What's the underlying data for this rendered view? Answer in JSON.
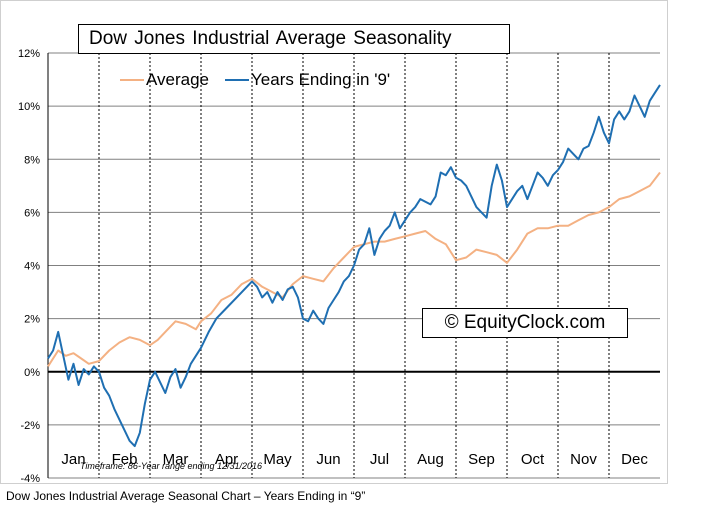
{
  "caption": "Dow Jones Industrial Average Seasonal Chart – Years Ending in “9”",
  "watermark": "© EquityClock.com",
  "timeframe_note": "Timeframe: 86-Year range ending 12/31/2016",
  "colors": {
    "average": "#f4b183",
    "years_ending_9": "#1f6fb2",
    "grid": "#808080",
    "zero_line": "#000000"
  },
  "chart_data": {
    "type": "line",
    "title": "Dow Jones Industrial Average Seasonality",
    "xlabel": "",
    "ylabel": "",
    "categories": [
      "Jan",
      "Feb",
      "Mar",
      "Apr",
      "May",
      "Jun",
      "Jul",
      "Aug",
      "Sep",
      "Oct",
      "Nov",
      "Dec"
    ],
    "ylim": [
      -4,
      12
    ],
    "yticks": [
      -4,
      -2,
      0,
      2,
      4,
      6,
      8,
      10,
      12
    ],
    "ytick_labels": [
      "-4%",
      "-2%",
      "0%",
      "2%",
      "4%",
      "6%",
      "8%",
      "10%",
      "12%"
    ],
    "x_unit": "month (0 = start of Jan, 12 = end of Dec)",
    "grid": true,
    "legend_position": "top-left",
    "series": [
      {
        "name": "Average",
        "color": "#f4b183",
        "x": [
          0,
          0.2,
          0.35,
          0.5,
          0.65,
          0.8,
          1.0,
          1.2,
          1.4,
          1.6,
          1.8,
          2.0,
          2.15,
          2.3,
          2.5,
          2.7,
          2.9,
          3.0,
          3.2,
          3.4,
          3.6,
          3.8,
          4.0,
          4.2,
          4.4,
          4.6,
          4.8,
          5.0,
          5.2,
          5.4,
          5.6,
          5.8,
          6.0,
          6.2,
          6.4,
          6.6,
          6.8,
          7.0,
          7.2,
          7.4,
          7.6,
          7.8,
          8.0,
          8.2,
          8.4,
          8.6,
          8.8,
          9.0,
          9.2,
          9.4,
          9.6,
          9.8,
          10.0,
          10.2,
          10.4,
          10.6,
          10.8,
          11.0,
          11.2,
          11.4,
          11.6,
          11.8,
          12.0
        ],
        "y": [
          0.2,
          0.8,
          0.6,
          0.7,
          0.5,
          0.3,
          0.4,
          0.8,
          1.1,
          1.3,
          1.2,
          1.0,
          1.2,
          1.5,
          1.9,
          1.8,
          1.6,
          1.9,
          2.2,
          2.7,
          2.9,
          3.3,
          3.5,
          3.2,
          3.0,
          2.8,
          3.3,
          3.6,
          3.5,
          3.4,
          3.9,
          4.3,
          4.7,
          4.8,
          4.9,
          4.9,
          5.0,
          5.1,
          5.2,
          5.3,
          5.0,
          4.8,
          4.2,
          4.3,
          4.6,
          4.5,
          4.4,
          4.1,
          4.6,
          5.2,
          5.4,
          5.4,
          5.5,
          5.5,
          5.7,
          5.9,
          6.0,
          6.2,
          6.5,
          6.6,
          6.8,
          7.0,
          7.5
        ]
      },
      {
        "name": "Years Ending in '9'",
        "color": "#1f6fb2",
        "x": [
          0,
          0.1,
          0.2,
          0.3,
          0.4,
          0.5,
          0.6,
          0.7,
          0.8,
          0.9,
          1.0,
          1.1,
          1.2,
          1.3,
          1.4,
          1.5,
          1.6,
          1.7,
          1.8,
          1.9,
          2.0,
          2.1,
          2.2,
          2.3,
          2.4,
          2.5,
          2.6,
          2.7,
          2.8,
          2.9,
          3.0,
          3.15,
          3.3,
          3.5,
          3.7,
          3.9,
          4.0,
          4.1,
          4.2,
          4.3,
          4.4,
          4.5,
          4.6,
          4.7,
          4.8,
          4.9,
          5.0,
          5.1,
          5.2,
          5.3,
          5.4,
          5.5,
          5.6,
          5.7,
          5.8,
          5.9,
          6.0,
          6.1,
          6.2,
          6.3,
          6.4,
          6.5,
          6.6,
          6.7,
          6.8,
          6.9,
          7.0,
          7.1,
          7.2,
          7.3,
          7.4,
          7.5,
          7.6,
          7.7,
          7.8,
          7.9,
          8.0,
          8.1,
          8.2,
          8.3,
          8.4,
          8.5,
          8.6,
          8.7,
          8.8,
          8.9,
          9.0,
          9.1,
          9.2,
          9.3,
          9.4,
          9.5,
          9.6,
          9.7,
          9.8,
          9.9,
          10.0,
          10.1,
          10.2,
          10.3,
          10.4,
          10.5,
          10.6,
          10.7,
          10.8,
          10.9,
          11.0,
          11.1,
          11.2,
          11.3,
          11.4,
          11.5,
          11.6,
          11.7,
          11.8,
          11.9,
          12.0
        ],
        "y": [
          0.5,
          0.8,
          1.5,
          0.6,
          -0.3,
          0.3,
          -0.5,
          0.1,
          -0.1,
          0.2,
          0.0,
          -0.6,
          -0.9,
          -1.4,
          -1.8,
          -2.2,
          -2.6,
          -2.8,
          -2.3,
          -1.2,
          -0.3,
          0.0,
          -0.4,
          -0.8,
          -0.2,
          0.1,
          -0.6,
          -0.2,
          0.3,
          0.6,
          0.9,
          1.5,
          2.0,
          2.4,
          2.8,
          3.2,
          3.4,
          3.2,
          2.8,
          3.0,
          2.6,
          3.0,
          2.7,
          3.1,
          3.2,
          2.8,
          2.0,
          1.9,
          2.3,
          2.0,
          1.8,
          2.4,
          2.7,
          3.0,
          3.4,
          3.6,
          4.0,
          4.6,
          4.8,
          5.4,
          4.4,
          5.0,
          5.3,
          5.5,
          6.0,
          5.4,
          5.7,
          6.0,
          6.2,
          6.5,
          6.4,
          6.3,
          6.6,
          7.5,
          7.4,
          7.7,
          7.3,
          7.2,
          7.0,
          6.6,
          6.2,
          6.0,
          5.8,
          7.0,
          7.8,
          7.2,
          6.2,
          6.5,
          6.8,
          7.0,
          6.5,
          7.0,
          7.5,
          7.3,
          7.0,
          7.4,
          7.6,
          7.9,
          8.4,
          8.2,
          8.0,
          8.4,
          8.5,
          9.0,
          9.6,
          9.0,
          8.6,
          9.5,
          9.8,
          9.5,
          9.8,
          10.4,
          10.0,
          9.6,
          10.2,
          10.5,
          10.8
        ]
      }
    ]
  }
}
